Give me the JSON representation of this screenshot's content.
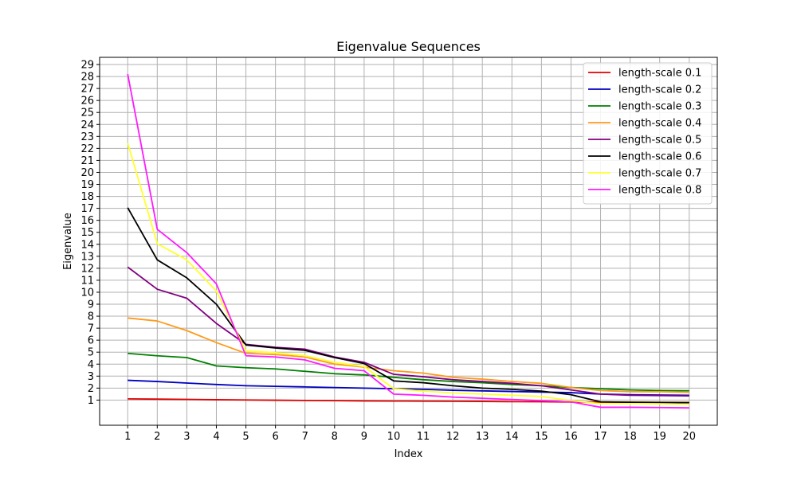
{
  "chart_data": {
    "type": "line",
    "title": "Eigenvalue Sequences",
    "xlabel": "Index",
    "ylabel": "Eigenvalue",
    "x": [
      1,
      2,
      3,
      4,
      5,
      6,
      7,
      8,
      9,
      10,
      11,
      12,
      13,
      14,
      15,
      16,
      17,
      18,
      19,
      20
    ],
    "xlim": [
      0.05,
      20.95
    ],
    "ylim": [
      -1.1,
      29.6
    ],
    "yticks": [
      1,
      2,
      3,
      4,
      5,
      6,
      7,
      8,
      9,
      10,
      11,
      12,
      13,
      14,
      15,
      16,
      17,
      18,
      19,
      20,
      21,
      22,
      23,
      24,
      25,
      26,
      27,
      28,
      29
    ],
    "grid": true,
    "legend_position": "top-right",
    "series": [
      {
        "name": "length-scale 0.1",
        "color": "#e00000",
        "values": [
          1.1,
          1.08,
          1.06,
          1.03,
          1.01,
          0.99,
          0.97,
          0.95,
          0.93,
          0.92,
          0.91,
          0.9,
          0.89,
          0.87,
          0.86,
          0.84,
          0.83,
          0.82,
          0.81,
          0.8
        ]
      },
      {
        "name": "length-scale 0.2",
        "color": "#0000c0",
        "values": [
          2.65,
          2.55,
          2.42,
          2.3,
          2.2,
          2.15,
          2.1,
          2.05,
          2.0,
          1.95,
          1.9,
          1.82,
          1.77,
          1.72,
          1.67,
          1.62,
          1.5,
          1.45,
          1.42,
          1.4
        ]
      },
      {
        "name": "length-scale 0.3",
        "color": "#008000",
        "values": [
          4.9,
          4.7,
          4.55,
          3.85,
          3.7,
          3.6,
          3.4,
          3.2,
          3.1,
          2.9,
          2.7,
          2.55,
          2.45,
          2.3,
          2.2,
          2.05,
          1.95,
          1.85,
          1.8,
          1.78
        ]
      },
      {
        "name": "length-scale 0.4",
        "color": "#ff9a1a",
        "values": [
          7.85,
          7.6,
          6.8,
          5.8,
          4.9,
          4.8,
          4.6,
          4.0,
          3.75,
          3.45,
          3.25,
          2.9,
          2.75,
          2.55,
          2.4,
          2.05,
          1.8,
          1.7,
          1.7,
          1.65
        ]
      },
      {
        "name": "length-scale 0.5",
        "color": "#800080",
        "values": [
          12.1,
          10.25,
          9.5,
          7.4,
          5.65,
          5.4,
          5.25,
          4.6,
          4.15,
          3.15,
          2.95,
          2.7,
          2.55,
          2.4,
          2.2,
          1.85,
          1.5,
          1.4,
          1.38,
          1.35
        ]
      },
      {
        "name": "length-scale 0.6",
        "color": "#000000",
        "values": [
          17.05,
          12.7,
          11.2,
          9.0,
          5.6,
          5.35,
          5.15,
          4.55,
          4.05,
          2.6,
          2.45,
          2.2,
          2.0,
          1.9,
          1.75,
          1.45,
          0.85,
          0.82,
          0.8,
          0.78
        ]
      },
      {
        "name": "length-scale 0.7",
        "color": "#ffff2b",
        "values": [
          22.45,
          14.05,
          12.7,
          10.1,
          5.1,
          4.95,
          4.7,
          4.15,
          3.8,
          1.95,
          1.75,
          1.6,
          1.5,
          1.4,
          1.3,
          0.95,
          0.7,
          0.7,
          0.68,
          0.66
        ]
      },
      {
        "name": "length-scale 0.8",
        "color": "#ff1aff",
        "values": [
          28.2,
          15.25,
          13.3,
          10.7,
          4.7,
          4.6,
          4.35,
          3.65,
          3.45,
          1.5,
          1.4,
          1.25,
          1.15,
          1.05,
          0.95,
          0.85,
          0.4,
          0.4,
          0.38,
          0.35
        ]
      }
    ]
  }
}
